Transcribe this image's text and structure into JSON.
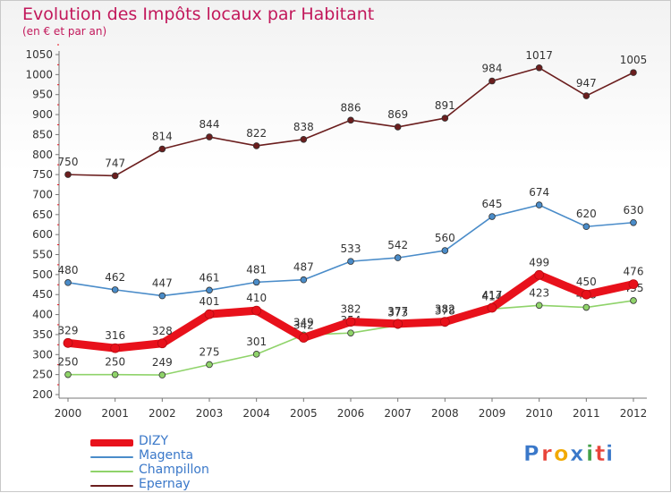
{
  "title": "Evolution des Impôts locaux par Habitant",
  "subtitle": "(en € et par an)",
  "brand": {
    "letters": [
      "P",
      "r",
      "o",
      "x",
      "i",
      "t",
      "i"
    ],
    "colors": [
      "#3a78c9",
      "#e8443a",
      "#f2a900",
      "#3a78c9",
      "#43a047",
      "#e8443a",
      "#3a78c9"
    ]
  },
  "chart_data": {
    "type": "line",
    "x": [
      "2000",
      "2001",
      "2002",
      "2003",
      "2004",
      "2005",
      "2006",
      "2007",
      "2008",
      "2009",
      "2010",
      "2011",
      "2012"
    ],
    "y_ticks": [
      200,
      250,
      300,
      350,
      400,
      450,
      500,
      550,
      600,
      650,
      700,
      750,
      800,
      850,
      900,
      950,
      1000,
      1050
    ],
    "ylim": [
      200,
      1050
    ],
    "grid": false,
    "legend_position": "bottom-left",
    "series": [
      {
        "name": "Epernay",
        "color": "#6b1e1e",
        "values": [
          750,
          747,
          814,
          844,
          822,
          838,
          886,
          869,
          891,
          984,
          1017,
          947,
          1005
        ]
      },
      {
        "name": "Magenta",
        "color": "#4a8cc9",
        "values": [
          480,
          462,
          447,
          461,
          481,
          487,
          533,
          542,
          560,
          645,
          674,
          620,
          630
        ]
      },
      {
        "name": "Champillon",
        "color": "#8fd36a",
        "values": [
          250,
          250,
          249,
          275,
          301,
          349,
          354,
          373,
          378,
          414,
          423,
          418,
          435
        ]
      },
      {
        "name": "DIZY",
        "color": "#e8111b",
        "values": [
          329,
          316,
          328,
          401,
          410,
          342,
          382,
          377,
          382,
          417,
          499,
          450,
          476
        ]
      }
    ],
    "legend": [
      {
        "name": "DIZY",
        "color": "#e8111b",
        "thickness": 8
      },
      {
        "name": "Magenta",
        "color": "#4a8cc9",
        "thickness": 2
      },
      {
        "name": "Champillon",
        "color": "#8fd36a",
        "thickness": 2
      },
      {
        "name": "Epernay",
        "color": "#6b1e1e",
        "thickness": 2
      }
    ]
  }
}
